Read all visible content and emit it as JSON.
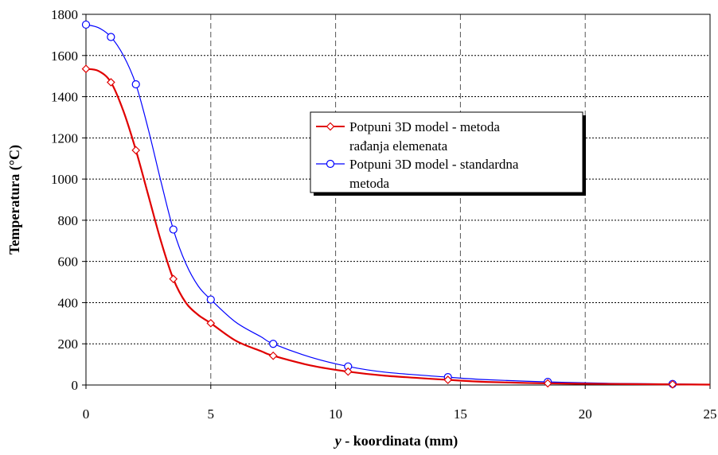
{
  "chart_data": {
    "type": "line",
    "xlabel_var": "y",
    "xlabel_rest": " - koordinata (mm)",
    "ylabel": "Temperatura (°C)",
    "xlim": [
      0,
      25
    ],
    "ylim": [
      0,
      1800
    ],
    "x_ticks": [
      0,
      5,
      10,
      15,
      20,
      25
    ],
    "y_ticks": [
      0,
      200,
      400,
      600,
      800,
      1000,
      1200,
      1400,
      1600,
      1800
    ],
    "grid": {
      "horizontal": "dotted",
      "vertical": "dashed"
    },
    "legend_position": "center-right",
    "series": [
      {
        "name_line1": "Potpuni 3D model - metoda",
        "name_line2": "rađanja elemenata",
        "color": "#e00000",
        "marker": "diamond",
        "x": [
          0,
          1,
          2,
          3.5,
          5,
          7.5,
          10.5,
          14.5,
          18.5,
          23.5
        ],
        "y": [
          1535,
          1470,
          1140,
          515,
          300,
          142,
          65,
          25,
          8,
          3
        ],
        "curve_x": [
          0,
          0.5,
          1,
          1.5,
          2,
          2.5,
          3,
          3.5,
          4,
          4.5,
          5,
          6,
          7,
          7.5,
          9,
          10.5,
          12,
          14.5,
          16,
          18.5,
          21,
          23.5,
          25
        ],
        "curve_y": [
          1535,
          1525,
          1470,
          1330,
          1140,
          920,
          700,
          515,
          400,
          340,
          300,
          215,
          165,
          142,
          95,
          65,
          45,
          25,
          15,
          8,
          5,
          3,
          2
        ]
      },
      {
        "name_line1": "Potpuni 3D model - standardna",
        "name_line2": "metoda",
        "color": "#0000ff",
        "marker": "circle",
        "x": [
          0,
          1,
          2,
          3.5,
          5,
          7.5,
          10.5,
          14.5,
          18.5,
          23.5
        ],
        "y": [
          1750,
          1690,
          1460,
          755,
          415,
          200,
          90,
          38,
          15,
          5
        ],
        "curve_x": [
          0,
          0.5,
          1,
          1.5,
          2,
          2.5,
          3,
          3.5,
          4,
          4.5,
          5,
          6,
          7,
          7.5,
          9,
          10.5,
          12,
          14.5,
          16,
          18.5,
          21,
          23.5,
          25
        ],
        "curve_y": [
          1750,
          1735,
          1690,
          1600,
          1460,
          1240,
          990,
          755,
          590,
          480,
          415,
          305,
          235,
          200,
          135,
          90,
          62,
          38,
          26,
          15,
          8,
          5,
          3
        ]
      }
    ]
  }
}
